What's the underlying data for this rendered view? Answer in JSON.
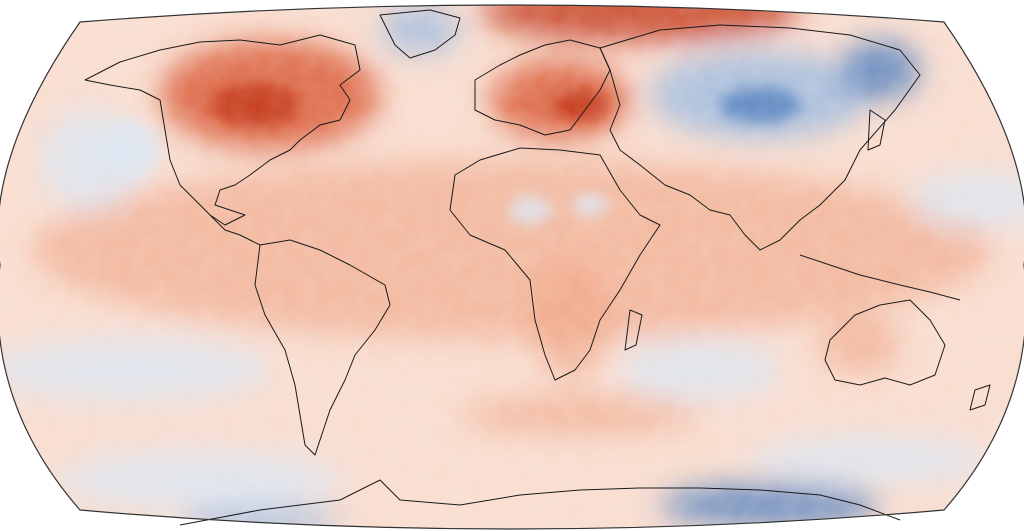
{
  "map": {
    "projection": "robinson",
    "field": "temperature-anomaly",
    "palette": {
      "ocean_warm": "#f6c2a8",
      "ocean_neutral": "#f9ddcf",
      "warm": "#ee9a78",
      "hot": "#d8512a",
      "very_hot": "#c0300f",
      "cool": "#dbe6f3",
      "cold": "#9ab9de",
      "very_cold": "#4d7cbc",
      "coastline": "#1a1a1a",
      "outline": "#333333"
    }
  }
}
